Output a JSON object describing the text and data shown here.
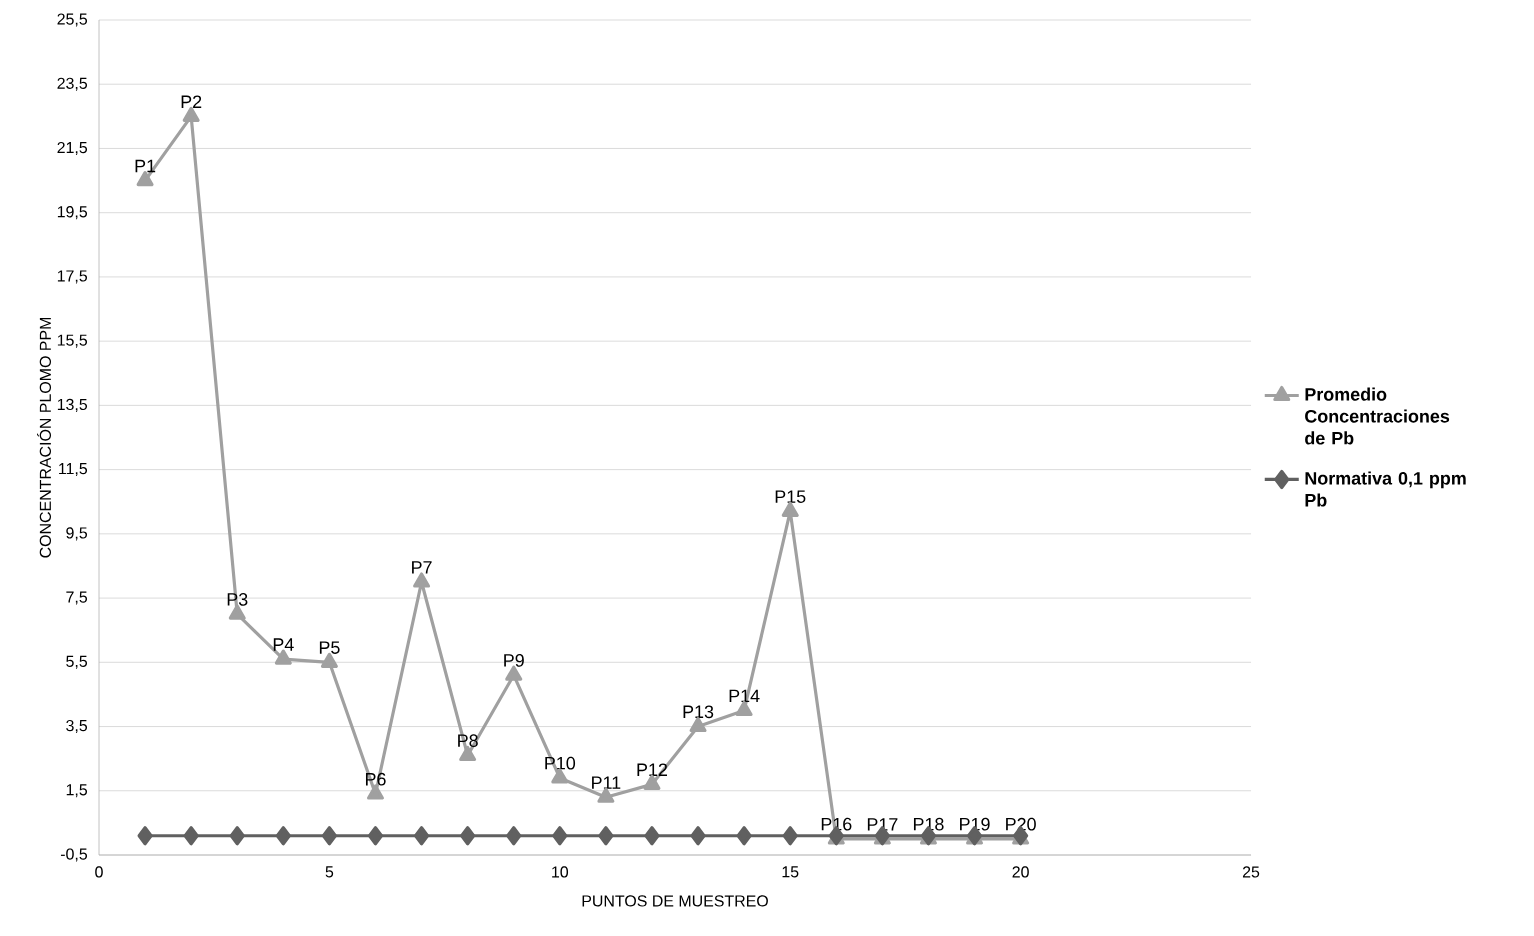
{
  "chart_data": {
    "type": "line",
    "xlabel": "PUNTOS DE MUESTREO",
    "ylabel": "CONCENTRACIÓN PLOMO PPM",
    "x": [
      1,
      2,
      3,
      4,
      5,
      6,
      7,
      8,
      9,
      10,
      11,
      12,
      13,
      14,
      15,
      16,
      17,
      18,
      19,
      20
    ],
    "series": [
      {
        "name": "Promedio Concentraciones de Pb",
        "color": "#a0a0a0",
        "marker": "triangle",
        "values": [
          20.5,
          22.5,
          7.0,
          5.6,
          5.5,
          1.4,
          8.0,
          2.6,
          5.1,
          1.9,
          1.3,
          1.7,
          3.5,
          4.0,
          10.2,
          0,
          0,
          0,
          0,
          0
        ],
        "value_labels": [
          "P1",
          "P2",
          "P3",
          "P4",
          "P5",
          "P6",
          "P7",
          "P8",
          "P9",
          "P10",
          "P11",
          "P12",
          "P13",
          "P14",
          "P15",
          "P16",
          "P17",
          "P18",
          "P19",
          "P20"
        ]
      },
      {
        "name": "Normativa 0,1 ppm Pb",
        "color": "#606060",
        "marker": "diamond",
        "values": [
          0.1,
          0.1,
          0.1,
          0.1,
          0.1,
          0.1,
          0.1,
          0.1,
          0.1,
          0.1,
          0.1,
          0.1,
          0.1,
          0.1,
          0.1,
          0.1,
          0.1,
          0.1,
          0.1,
          0.1
        ]
      }
    ],
    "xlim": [
      0,
      25
    ],
    "xticks": [
      0,
      5,
      10,
      15,
      20,
      25
    ],
    "ylim": [
      -0.5,
      25.5
    ],
    "yticks": [
      {
        "value": -0.5,
        "label": "-0,5"
      },
      {
        "value": 1.5,
        "label": "1,5"
      },
      {
        "value": 3.5,
        "label": "3,5"
      },
      {
        "value": 5.5,
        "label": "5,5"
      },
      {
        "value": 7.5,
        "label": "7,5"
      },
      {
        "value": 9.5,
        "label": "9,5"
      },
      {
        "value": 11.5,
        "label": "11,5"
      },
      {
        "value": 13.5,
        "label": "13,5"
      },
      {
        "value": 15.5,
        "label": "15,5"
      },
      {
        "value": 17.5,
        "label": "17,5"
      },
      {
        "value": 19.5,
        "label": "19,5"
      },
      {
        "value": 21.5,
        "label": "21,5"
      },
      {
        "value": 23.5,
        "label": "23,5"
      },
      {
        "value": 25.5,
        "label": "25,5"
      }
    ],
    "grid": "y",
    "legend": "right",
    "line_style": "solid"
  }
}
